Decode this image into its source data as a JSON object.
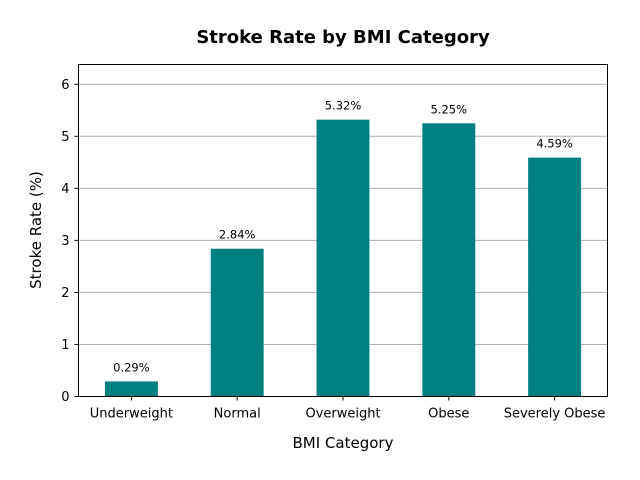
{
  "chart_data": {
    "type": "bar",
    "title": "Stroke Rate by BMI Category",
    "xlabel": "BMI Category",
    "ylabel": "Stroke Rate (%)",
    "categories": [
      "Underweight",
      "Normal",
      "Overweight",
      "Obese",
      "Severely Obese"
    ],
    "values": [
      0.29,
      2.84,
      5.32,
      5.25,
      4.59
    ],
    "value_labels": [
      "0.29%",
      "2.84%",
      "5.32%",
      "5.25%",
      "4.59%"
    ],
    "ylim": [
      0,
      6.38
    ],
    "yticks": [
      0,
      1,
      2,
      3,
      4,
      5,
      6
    ],
    "grid": "y",
    "legend": "none",
    "colors": {
      "bar": "#008080",
      "grid": "#b0b0b0",
      "axis": "#000000"
    }
  }
}
